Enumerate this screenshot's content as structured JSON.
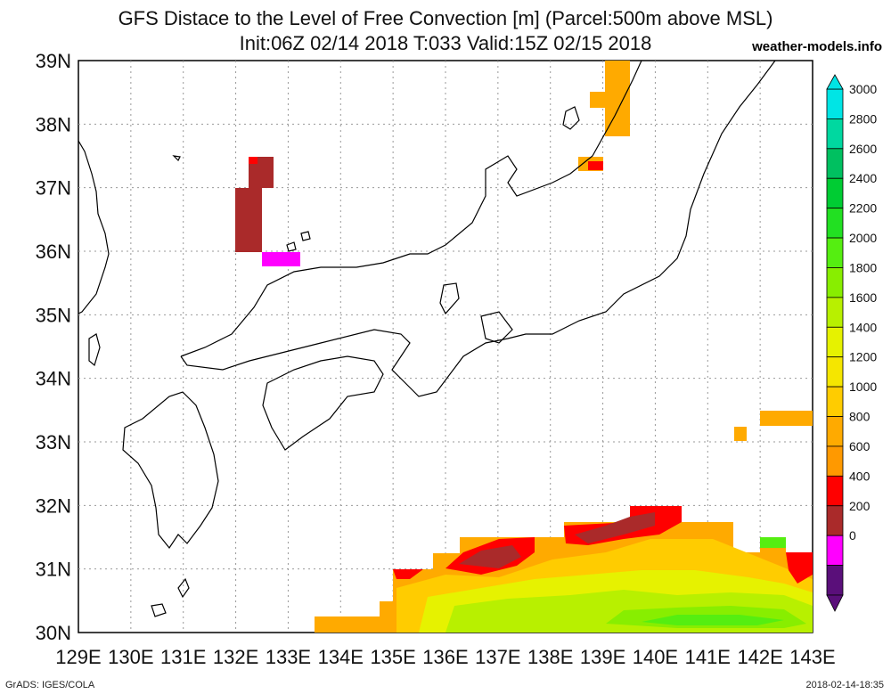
{
  "title_line1": "GFS Distace to the Level of Free Convection [m] (Parcel:500m above MSL)",
  "title_line2": "Init:06Z 02/14 2018 T:033 Valid:15Z 02/15 2018",
  "site": "weather-models.info",
  "footer_left": "GrADS: IGES/COLA",
  "footer_right": "2018-02-14-18:35",
  "lon_labels": [
    "129E",
    "130E",
    "131E",
    "132E",
    "133E",
    "134E",
    "135E",
    "136E",
    "137E",
    "138E",
    "139E",
    "140E",
    "141E",
    "142E",
    "143E"
  ],
  "lat_labels": [
    "39N",
    "38N",
    "37N",
    "36N",
    "35N",
    "34N",
    "33N",
    "32N",
    "31N",
    "30N"
  ],
  "colorbar": {
    "labels": [
      "3000",
      "2800",
      "2600",
      "2400",
      "2200",
      "2000",
      "1800",
      "1600",
      "1400",
      "1200",
      "1000",
      "800",
      "600",
      "400",
      "200",
      "0"
    ],
    "colors": [
      "#00e5e5",
      "#00d8a0",
      "#00c060",
      "#00cc33",
      "#22e022",
      "#55ee11",
      "#88ee00",
      "#b8f000",
      "#e6f200",
      "#f5e600",
      "#ffcc00",
      "#ffaa00",
      "#ff9900",
      "#ff0000",
      "#aa2a2a",
      "#ff00ff",
      "#5a0f7a"
    ]
  },
  "fields": {
    "max_top": "#6a1a9a",
    "min_bottom": "#e0e0e0"
  }
}
